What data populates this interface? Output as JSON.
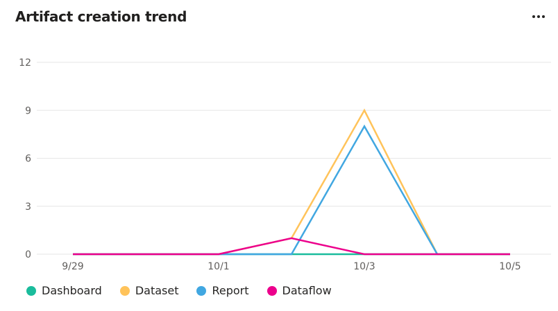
{
  "header": {
    "title": "Artifact creation trend",
    "more_icon": "more-options-icon"
  },
  "legend": [
    {
      "label": "Dashboard",
      "color": "#1ABC9C"
    },
    {
      "label": "Dataset",
      "color": "#FFC35A"
    },
    {
      "label": "Report",
      "color": "#41A7E1"
    },
    {
      "label": "Dataflow",
      "color": "#EC008C"
    }
  ],
  "chart_data": {
    "type": "line",
    "title": "Artifact creation trend",
    "xlabel": "",
    "ylabel": "",
    "x": [
      "9/29",
      "9/30",
      "10/1",
      "10/2",
      "10/3",
      "10/4",
      "10/5"
    ],
    "x_tick_labels": [
      "9/29",
      "10/1",
      "10/3",
      "10/5"
    ],
    "y_ticks": [
      0,
      3,
      6,
      9,
      12
    ],
    "ylim": [
      0,
      12
    ],
    "grid": true,
    "legend_position": "bottom",
    "series": [
      {
        "name": "Dashboard",
        "color": "#1ABC9C",
        "values": [
          0,
          0,
          0,
          0,
          0,
          0,
          0
        ]
      },
      {
        "name": "Dataset",
        "color": "#FFC35A",
        "values": [
          0,
          0,
          0,
          1,
          9,
          0,
          0
        ]
      },
      {
        "name": "Report",
        "color": "#41A7E1",
        "values": [
          0,
          0,
          0,
          0,
          8,
          0,
          0
        ]
      },
      {
        "name": "Dataflow",
        "color": "#EC008C",
        "values": [
          0,
          0,
          0,
          1,
          0,
          0,
          0
        ]
      }
    ]
  }
}
